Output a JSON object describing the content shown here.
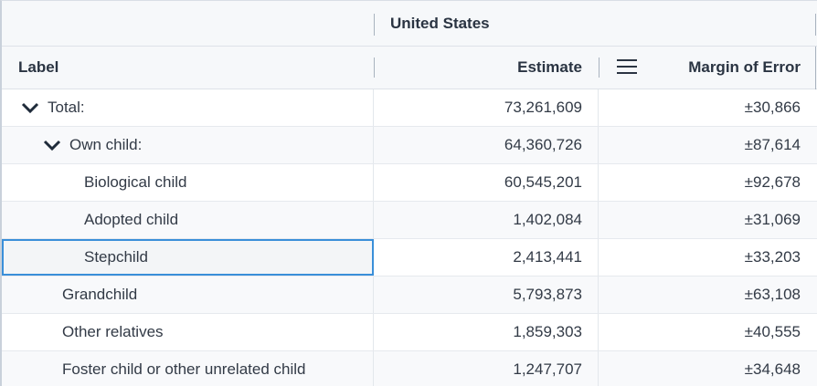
{
  "header": {
    "geography": "United States",
    "columns": {
      "label": "Label",
      "estimate": "Estimate",
      "margin_of_error": "Margin of Error"
    }
  },
  "rows": [
    {
      "label": "Total:",
      "estimate": "73,261,609",
      "moe": "±30,866",
      "level": 0,
      "expandable": true,
      "expanded": true
    },
    {
      "label": "Own child:",
      "estimate": "64,360,726",
      "moe": "±87,614",
      "level": 1,
      "expandable": true,
      "expanded": true
    },
    {
      "label": "Biological child",
      "estimate": "60,545,201",
      "moe": "±92,678",
      "level": 2
    },
    {
      "label": "Adopted child",
      "estimate": "1,402,084",
      "moe": "±31,069",
      "level": 2
    },
    {
      "label": "Stepchild",
      "estimate": "2,413,441",
      "moe": "±33,203",
      "level": 2,
      "selected": true
    },
    {
      "label": "Grandchild",
      "estimate": "5,793,873",
      "moe": "±63,108",
      "level": 1
    },
    {
      "label": "Other relatives",
      "estimate": "1,859,303",
      "moe": "±40,555",
      "level": 1
    },
    {
      "label": "Foster child or other unrelated child",
      "estimate": "1,247,707",
      "moe": "±34,648",
      "level": 1
    }
  ],
  "icons": {
    "expand": "chevron-down-icon",
    "column_menu": "menu-icon"
  }
}
